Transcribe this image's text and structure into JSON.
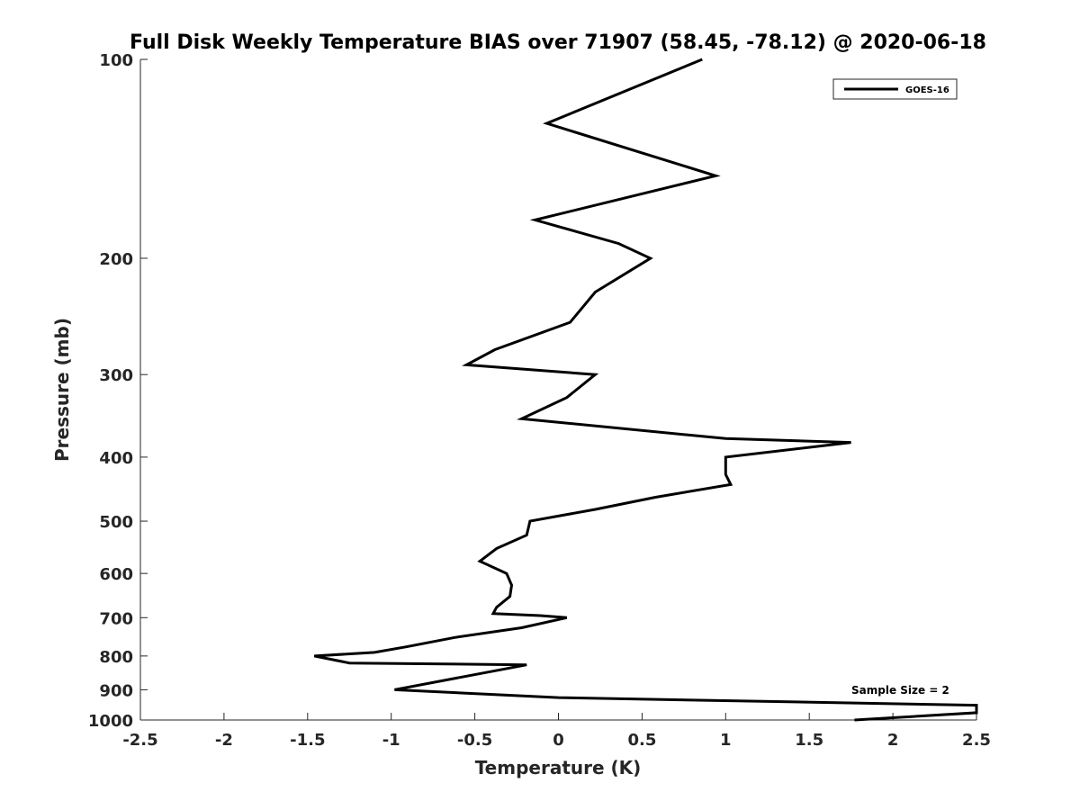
{
  "chart_data": {
    "type": "line",
    "title": "Full Disk Weekly Temperature BIAS over 71907 (58.45, -78.12) @ 2020-06-18",
    "xlabel": "Temperature (K)",
    "ylabel": "Pressure (mb)",
    "xlim": [
      -2.5,
      2.5
    ],
    "ylim": [
      1000,
      100
    ],
    "yscale": "log",
    "y_reversed": true,
    "grid": false,
    "legend_position": "top-right",
    "x_ticks": [
      "-2.5",
      "-2",
      "-1.5",
      "-1",
      "-0.5",
      "0",
      "0.5",
      "1",
      "1.5",
      "2",
      "2.5"
    ],
    "x_tick_values": [
      -2.5,
      -2,
      -1.5,
      -1,
      -0.5,
      0,
      0.5,
      1,
      1.5,
      2,
      2.5
    ],
    "y_ticks": [
      "100",
      "200",
      "300",
      "400",
      "500",
      "600",
      "700",
      "800",
      "900",
      "1000"
    ],
    "y_tick_values": [
      100,
      200,
      300,
      400,
      500,
      600,
      700,
      800,
      900,
      1000
    ],
    "series": [
      {
        "name": "GOES-16",
        "color": "#000000",
        "points": [
          [
            0.86,
            100
          ],
          [
            -0.07,
            125
          ],
          [
            0.94,
            150
          ],
          [
            -0.14,
            175
          ],
          [
            0.36,
            190
          ],
          [
            0.55,
            200
          ],
          [
            0.22,
            225
          ],
          [
            0.07,
            250
          ],
          [
            -0.38,
            275
          ],
          [
            -0.55,
            290
          ],
          [
            0.22,
            300
          ],
          [
            0.05,
            325
          ],
          [
            -0.22,
            350
          ],
          [
            1.0,
            375
          ],
          [
            1.75,
            380
          ],
          [
            1.0,
            400
          ],
          [
            1.0,
            425
          ],
          [
            1.03,
            440
          ],
          [
            0.58,
            460
          ],
          [
            0.22,
            480
          ],
          [
            -0.17,
            500
          ],
          [
            -0.19,
            525
          ],
          [
            -0.37,
            550
          ],
          [
            -0.47,
            575
          ],
          [
            -0.31,
            600
          ],
          [
            -0.28,
            625
          ],
          [
            -0.29,
            650
          ],
          [
            -0.37,
            675
          ],
          [
            -0.39,
            690
          ],
          [
            -0.11,
            695
          ],
          [
            0.05,
            700
          ],
          [
            -0.22,
            725
          ],
          [
            -0.62,
            750
          ],
          [
            -0.91,
            775
          ],
          [
            -1.1,
            790
          ],
          [
            -1.46,
            800
          ],
          [
            -1.25,
            820
          ],
          [
            -0.19,
            825
          ],
          [
            -0.98,
            900
          ],
          [
            0.0,
            925
          ],
          [
            2.5,
            950
          ],
          [
            2.5,
            975
          ],
          [
            1.77,
            1000
          ]
        ]
      }
    ],
    "annotations": [
      "Sample Size = 2"
    ]
  }
}
